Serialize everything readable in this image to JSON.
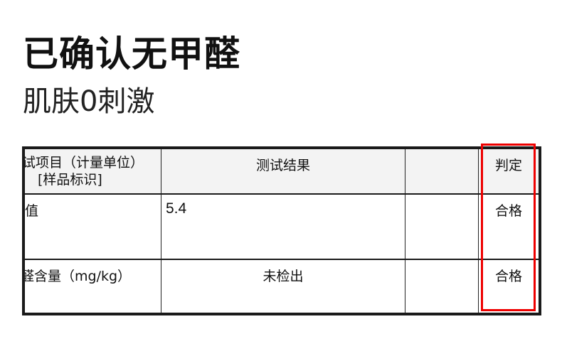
{
  "title": "已确认无甲醛",
  "subtitle": "肌肤0刺激",
  "table": {
    "header": {
      "item_line1": "试项目（计量单位）",
      "item_line2": "[样品标识]",
      "result": "测试结果",
      "blank": "",
      "verdict": "判定"
    },
    "rows": [
      {
        "item": "值",
        "result": "5.4",
        "blank": "",
        "verdict": "合格"
      },
      {
        "item": "醛含量（mg/kg）",
        "result": "未检出",
        "blank": "",
        "verdict": "合格"
      }
    ]
  },
  "colors": {
    "highlight": "#ee0000",
    "header_bg": "#f3f3f3",
    "border": "#1a1a1a"
  }
}
